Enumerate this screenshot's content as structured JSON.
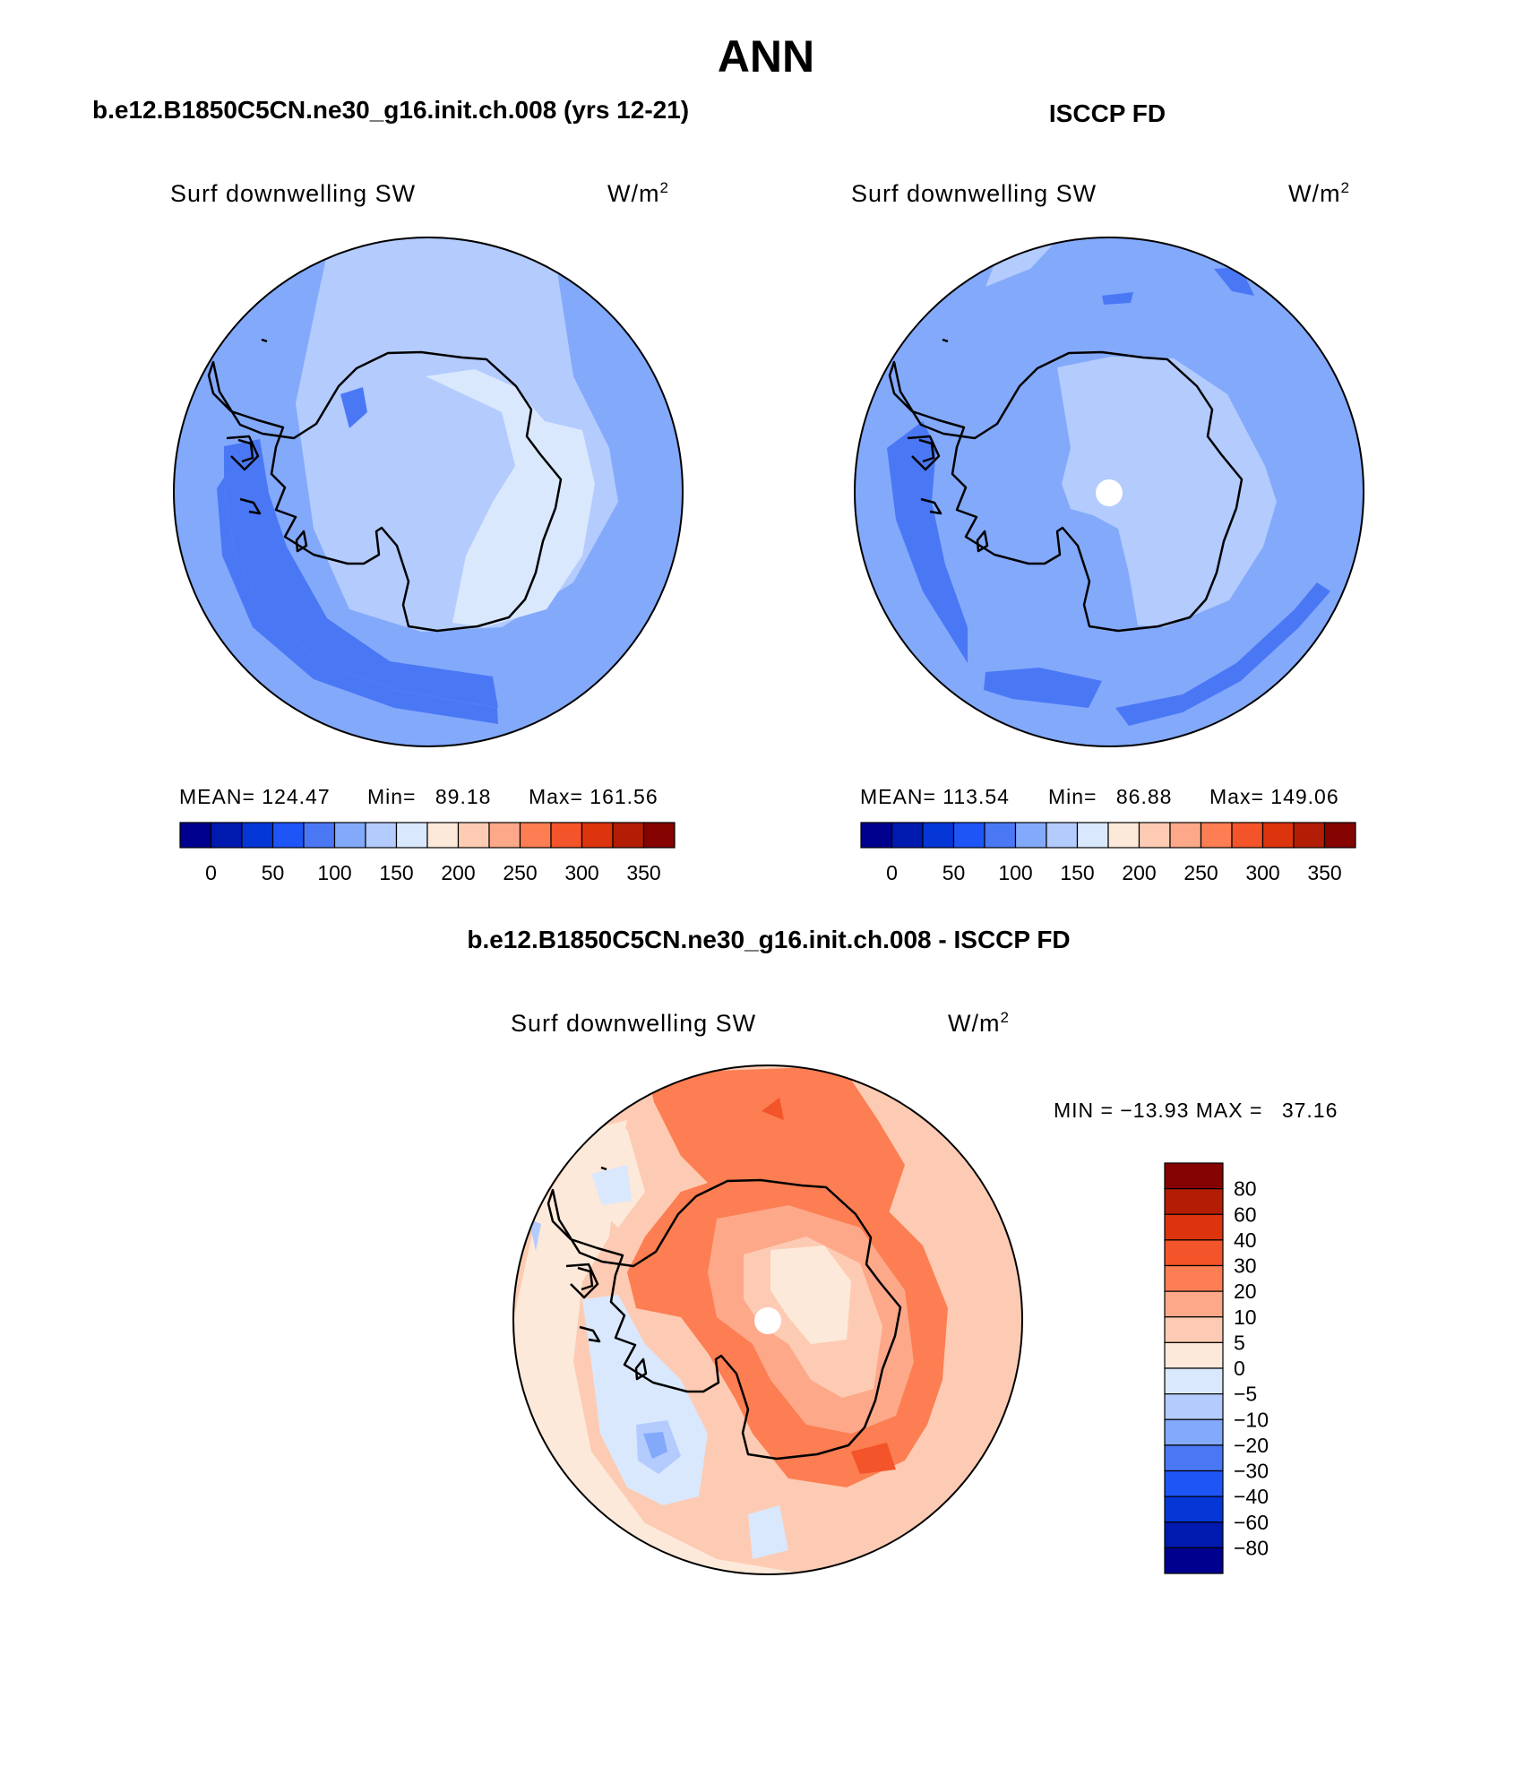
{
  "figure": {
    "title": "ANN",
    "colors": {
      "ocean_base": "#83a9fb",
      "coastline": "#000000",
      "border": "#000000"
    }
  },
  "panels": [
    {
      "id": "model",
      "header": "b.e12.B1850C5CN.ne30_g16.init.ch.008 (yrs 12-21)",
      "variable": "Surf downwelling SW",
      "units": "W/m",
      "units_sup": "2",
      "stats": {
        "mean_label": "MEAN=",
        "mean": "124.47",
        "min_label": "Min=",
        "min": "89.18",
        "max_label": "Max=",
        "max": "161.56"
      }
    },
    {
      "id": "obs",
      "header": "ISCCP FD",
      "variable": "Surf downwelling SW",
      "units": "W/m",
      "units_sup": "2",
      "stats": {
        "mean_label": "MEAN=",
        "mean": "113.54",
        "min_label": "Min=",
        "min": "86.88",
        "max_label": "Max=",
        "max": "149.06"
      }
    },
    {
      "id": "diff",
      "header": "b.e12.B1850C5CN.ne30_g16.init.ch.008 - ISCCP FD",
      "variable": "Surf downwelling SW",
      "units": "W/m",
      "units_sup": "2",
      "stats": {
        "min_label": "MIN =",
        "min": "−13.93",
        "max_label": "MAX =",
        "max": "37.16"
      }
    }
  ],
  "colorbars": {
    "absolute": {
      "colors": [
        "#00008f",
        "#0019af",
        "#0537d7",
        "#1e55f7",
        "#4a78f5",
        "#83a9fb",
        "#b3cbfd",
        "#d9e8fd",
        "#fde9d9",
        "#fdcbb3",
        "#fda889",
        "#fc7e52",
        "#f35429",
        "#dc340d",
        "#b41d05",
        "#850300"
      ],
      "tick_labels": [
        "0",
        "50",
        "100",
        "150",
        "200",
        "250",
        "300",
        "350"
      ]
    },
    "difference": {
      "colors_top_to_bottom": [
        "#850300",
        "#b41d05",
        "#dc340d",
        "#f35429",
        "#fc7e52",
        "#fda889",
        "#fdcbb3",
        "#fde9d9",
        "#d9e8fd",
        "#b3cbfd",
        "#83a9fb",
        "#4a78f5",
        "#1e55f7",
        "#0537d7",
        "#0019af",
        "#00008f"
      ],
      "tick_labels": [
        "80",
        "60",
        "40",
        "30",
        "20",
        "10",
        "5",
        "0",
        "−5",
        "−10",
        "−20",
        "−30",
        "−40",
        "−60",
        "−80"
      ]
    }
  }
}
